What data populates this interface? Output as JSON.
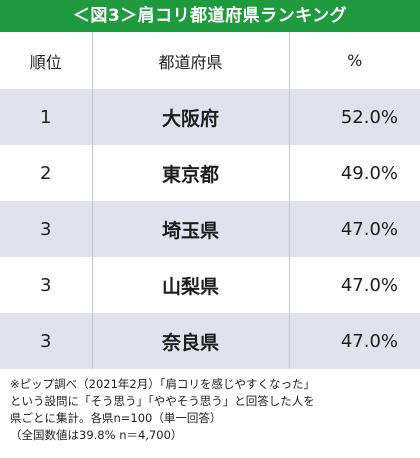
{
  "title": "＜図3＞肩コリ都道府県ランキング",
  "table": {
    "headers": [
      "順位",
      "都道府県",
      "%"
    ],
    "rows": [
      {
        "rank": "1",
        "prefecture": "大阪府",
        "percent": "52.0%"
      },
      {
        "rank": "2",
        "prefecture": "東京都",
        "percent": "49.0%"
      },
      {
        "rank": "3",
        "prefecture": "埼玉県",
        "percent": "47.0%"
      },
      {
        "rank": "3",
        "prefecture": "山梨県",
        "percent": "47.0%"
      },
      {
        "rank": "3",
        "prefecture": "奈良県",
        "percent": "47.0%"
      }
    ]
  },
  "chart_data": {
    "type": "table",
    "title": "＜図3＞肩コリ都道府県ランキング",
    "columns": [
      "順位",
      "都道府県",
      "%"
    ],
    "categories": [
      "大阪府",
      "東京都",
      "埼玉県",
      "山梨県",
      "奈良県"
    ],
    "ranks": [
      1,
      2,
      3,
      3,
      3
    ],
    "values": [
      52.0,
      49.0,
      47.0,
      47.0,
      47.0
    ]
  },
  "note": {
    "line1": "※ピップ調べ（2021年2月）「肩コリを感じやすくなった」",
    "line2": "という設問に「そう思う」「ややそう思う」と回答した人を",
    "line3": "県ごとに集計。各県n=100（単一回答）",
    "line4": "（全国数値は39.8% n＝4,700）"
  },
  "colors": {
    "title_bar": "#1f9a3f",
    "row_shade": "#dfe3ee",
    "divider": "#c4c9d6"
  }
}
